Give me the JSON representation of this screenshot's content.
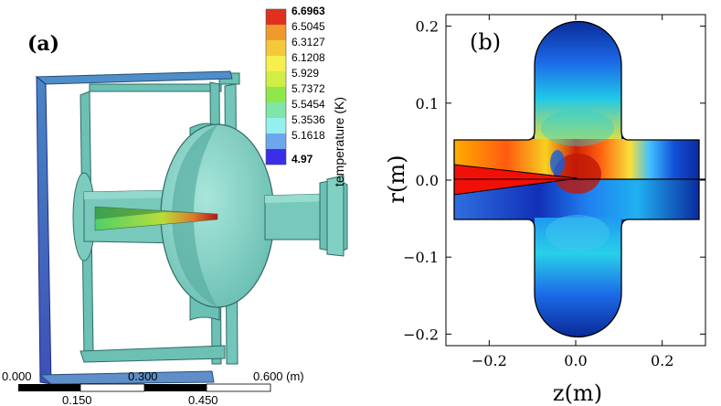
{
  "panel_a": {
    "label": "(a)",
    "colorbar": {
      "title": "temperature (K)",
      "ticks": [
        "6.6963",
        "6.5045",
        "6.3127",
        "6.1208",
        "5.929",
        "5.7372",
        "5.5454",
        "5.3536",
        "5.1618",
        "4.97"
      ],
      "colors": [
        "#e0301e",
        "#ef9a2c",
        "#f3c83a",
        "#f7ef4c",
        "#d0ee45",
        "#8fe84a",
        "#7fe5a8",
        "#94f0ee",
        "#6ea6ee",
        "#3a2ee8"
      ]
    },
    "scalebar": {
      "top_labels": [
        "0.000",
        "0.300",
        "0.600 (m)"
      ],
      "bottom_labels": [
        "0.150",
        "0.450"
      ]
    }
  },
  "panel_b": {
    "label": "(b)",
    "xlabel": "z(m)",
    "ylabel": "r(m)",
    "xticks": [
      {
        "value": -0.2,
        "label": "−0.2"
      },
      {
        "value": 0.0,
        "label": "0.0"
      },
      {
        "value": 0.2,
        "label": "0.2"
      }
    ],
    "yticks": [
      {
        "value": 0.2,
        "label": "0.2"
      },
      {
        "value": 0.1,
        "label": "0.1"
      },
      {
        "value": 0.0,
        "label": "0.0"
      },
      {
        "value": -0.1,
        "label": "−0.1"
      },
      {
        "value": -0.2,
        "label": "−0.2"
      }
    ],
    "xlim": [
      -0.3,
      0.3
    ],
    "ylim": [
      -0.215,
      0.215
    ]
  }
}
